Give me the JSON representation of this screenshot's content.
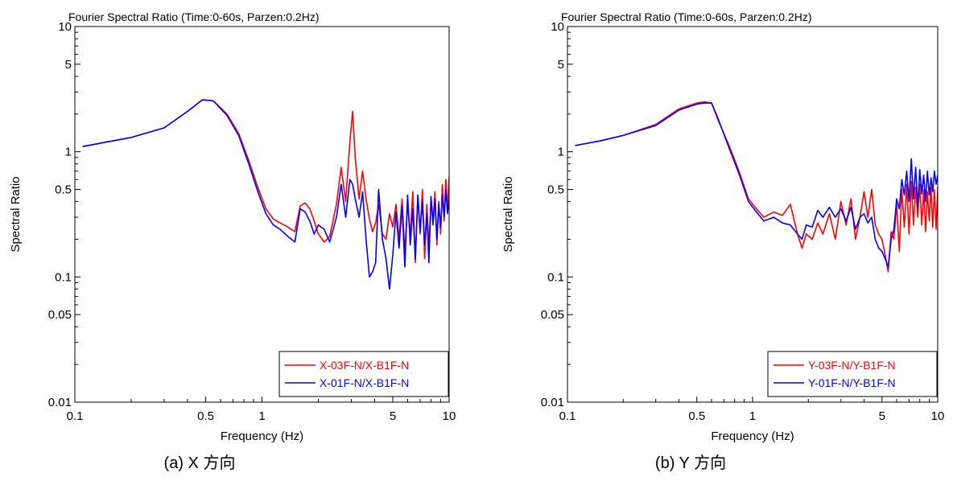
{
  "chart_data": [
    {
      "type": "line",
      "panel": "a",
      "title": "Fourier Spectral Ratio (Time:0-60s, Parzen:0.2Hz)",
      "xlabel": "Frequency (Hz)",
      "ylabel": "Spectral Ratio",
      "xscale": "log",
      "yscale": "log",
      "xlim": [
        0.1,
        10
      ],
      "ylim": [
        0.01,
        10
      ],
      "xticks": [
        0.1,
        0.5,
        1,
        5,
        10
      ],
      "xtick_labels": [
        "0.1",
        "0.5",
        "1",
        "5",
        "10"
      ],
      "yticks": [
        0.01,
        0.05,
        0.1,
        0.5,
        1,
        5,
        10
      ],
      "ytick_labels": [
        "0.01",
        "0.05",
        "0.1",
        "0.5",
        "1",
        "5",
        "10"
      ],
      "grid": false,
      "legend_position": "bottom-right",
      "caption": "(a)  X 方向",
      "series": [
        {
          "name": "X-03F-N/X-B1F-N",
          "color": "#ff0000",
          "x": [
            0.11,
            0.15,
            0.2,
            0.3,
            0.4,
            0.48,
            0.55,
            0.65,
            0.75,
            0.85,
            0.95,
            1.05,
            1.15,
            1.25,
            1.38,
            1.5,
            1.6,
            1.7,
            1.8,
            1.9,
            2.0,
            2.15,
            2.3,
            2.5,
            2.65,
            2.8,
            2.95,
            3.05,
            3.15,
            3.3,
            3.45,
            3.6,
            3.75,
            3.9,
            4.05,
            4.2,
            4.4,
            4.6,
            4.8,
            5.0,
            5.2,
            5.4,
            5.6,
            5.8,
            6.0,
            6.2,
            6.4,
            6.6,
            6.8,
            7.0,
            7.2,
            7.4,
            7.6,
            7.8,
            8.0,
            8.2,
            8.4,
            8.6,
            8.8,
            9.0,
            9.2,
            9.4,
            9.6,
            9.8,
            10.0
          ],
          "y": [
            1.1,
            1.2,
            1.3,
            1.55,
            2.1,
            2.6,
            2.55,
            2.0,
            1.4,
            0.85,
            0.52,
            0.35,
            0.29,
            0.27,
            0.25,
            0.23,
            0.37,
            0.39,
            0.35,
            0.28,
            0.22,
            0.19,
            0.21,
            0.38,
            0.75,
            0.4,
            1.2,
            2.1,
            0.9,
            0.42,
            0.7,
            0.42,
            0.29,
            0.23,
            0.27,
            0.38,
            0.22,
            0.2,
            0.32,
            0.25,
            0.38,
            0.2,
            0.42,
            0.16,
            0.38,
            0.22,
            0.48,
            0.13,
            0.45,
            0.22,
            0.5,
            0.14,
            0.38,
            0.17,
            0.42,
            0.28,
            0.48,
            0.18,
            0.4,
            0.22,
            0.55,
            0.28,
            0.6,
            0.34,
            0.63
          ]
        },
        {
          "name": "X-01F-N/X-B1F-N",
          "color": "#0000ff",
          "x": [
            0.11,
            0.15,
            0.2,
            0.3,
            0.4,
            0.48,
            0.55,
            0.65,
            0.75,
            0.85,
            0.95,
            1.05,
            1.15,
            1.25,
            1.38,
            1.5,
            1.6,
            1.7,
            1.8,
            1.9,
            2.0,
            2.15,
            2.3,
            2.5,
            2.65,
            2.8,
            2.95,
            3.05,
            3.15,
            3.3,
            3.45,
            3.6,
            3.75,
            3.9,
            4.05,
            4.2,
            4.4,
            4.6,
            4.8,
            5.0,
            5.2,
            5.4,
            5.6,
            5.8,
            6.0,
            6.2,
            6.4,
            6.6,
            6.8,
            7.0,
            7.2,
            7.4,
            7.6,
            7.8,
            8.0,
            8.2,
            8.4,
            8.6,
            8.8,
            9.0,
            9.2,
            9.4,
            9.6,
            9.8,
            10.0
          ],
          "y": [
            1.1,
            1.2,
            1.3,
            1.55,
            2.1,
            2.6,
            2.55,
            1.95,
            1.35,
            0.8,
            0.48,
            0.32,
            0.26,
            0.24,
            0.21,
            0.19,
            0.35,
            0.33,
            0.28,
            0.22,
            0.26,
            0.24,
            0.19,
            0.3,
            0.55,
            0.3,
            0.6,
            0.55,
            0.42,
            0.3,
            0.48,
            0.2,
            0.1,
            0.11,
            0.13,
            0.5,
            0.2,
            0.14,
            0.08,
            0.15,
            0.33,
            0.17,
            0.37,
            0.12,
            0.45,
            0.18,
            0.35,
            0.14,
            0.45,
            0.23,
            0.4,
            0.18,
            0.32,
            0.13,
            0.44,
            0.26,
            0.42,
            0.2,
            0.38,
            0.25,
            0.45,
            0.3,
            0.5,
            0.32,
            0.42
          ]
        }
      ]
    },
    {
      "type": "line",
      "panel": "b",
      "title": "Fourier Spectral Ratio (Time:0-60s, Parzen:0.2Hz)",
      "xlabel": "Frequency (Hz)",
      "ylabel": "Spectral Ratio",
      "xscale": "log",
      "yscale": "log",
      "xlim": [
        0.1,
        10
      ],
      "ylim": [
        0.01,
        10
      ],
      "xticks": [
        0.1,
        0.5,
        1,
        5,
        10
      ],
      "xtick_labels": [
        "0.1",
        "0.5",
        "1",
        "5",
        "10"
      ],
      "yticks": [
        0.01,
        0.05,
        0.1,
        0.5,
        1,
        5,
        10
      ],
      "ytick_labels": [
        "0.01",
        "0.05",
        "0.1",
        "0.5",
        "1",
        "5",
        "10"
      ],
      "grid": false,
      "legend_position": "bottom-right",
      "caption": "(b)  Y 方向",
      "series": [
        {
          "name": "Y-03F-N/Y-B1F-N",
          "color": "#ff0000",
          "x": [
            0.11,
            0.15,
            0.2,
            0.3,
            0.4,
            0.5,
            0.55,
            0.6,
            0.65,
            0.75,
            0.85,
            0.95,
            1.05,
            1.15,
            1.3,
            1.45,
            1.6,
            1.75,
            1.85,
            1.95,
            2.1,
            2.25,
            2.4,
            2.6,
            2.8,
            3.0,
            3.2,
            3.4,
            3.6,
            3.8,
            4.0,
            4.2,
            4.4,
            4.6,
            4.8,
            5.0,
            5.2,
            5.4,
            5.6,
            5.8,
            6.0,
            6.2,
            6.4,
            6.6,
            6.8,
            7.0,
            7.2,
            7.4,
            7.6,
            7.8,
            8.0,
            8.2,
            8.4,
            8.6,
            8.8,
            9.0,
            9.2,
            9.4,
            9.6,
            9.8,
            10.0
          ],
          "y": [
            1.12,
            1.22,
            1.35,
            1.65,
            2.2,
            2.45,
            2.5,
            2.45,
            1.8,
            1.1,
            0.68,
            0.42,
            0.35,
            0.3,
            0.33,
            0.31,
            0.38,
            0.22,
            0.17,
            0.22,
            0.2,
            0.27,
            0.22,
            0.32,
            0.2,
            0.4,
            0.26,
            0.42,
            0.2,
            0.3,
            0.48,
            0.3,
            0.5,
            0.26,
            0.22,
            0.2,
            0.15,
            0.11,
            0.23,
            0.2,
            0.38,
            0.16,
            0.5,
            0.25,
            0.55,
            0.22,
            0.58,
            0.26,
            0.52,
            0.3,
            0.55,
            0.26,
            0.5,
            0.23,
            0.48,
            0.28,
            0.52,
            0.25,
            0.5,
            0.24,
            0.52
          ]
        },
        {
          "name": "Y-01F-N/Y-B1F-N",
          "color": "#0000ff",
          "x": [
            0.11,
            0.15,
            0.2,
            0.3,
            0.4,
            0.5,
            0.55,
            0.6,
            0.65,
            0.75,
            0.85,
            0.95,
            1.05,
            1.15,
            1.3,
            1.45,
            1.6,
            1.75,
            1.85,
            1.95,
            2.1,
            2.25,
            2.4,
            2.6,
            2.8,
            3.0,
            3.2,
            3.4,
            3.6,
            3.8,
            4.0,
            4.2,
            4.4,
            4.6,
            4.8,
            5.0,
            5.2,
            5.4,
            5.6,
            5.8,
            6.0,
            6.2,
            6.4,
            6.6,
            6.8,
            7.0,
            7.2,
            7.4,
            7.6,
            7.8,
            8.0,
            8.2,
            8.4,
            8.6,
            8.8,
            9.0,
            9.2,
            9.4,
            9.6,
            9.8,
            10.0
          ],
          "y": [
            1.12,
            1.22,
            1.35,
            1.62,
            2.15,
            2.4,
            2.45,
            2.45,
            1.85,
            1.05,
            0.65,
            0.4,
            0.33,
            0.28,
            0.3,
            0.27,
            0.26,
            0.22,
            0.2,
            0.26,
            0.25,
            0.34,
            0.3,
            0.36,
            0.3,
            0.35,
            0.28,
            0.36,
            0.24,
            0.3,
            0.32,
            0.27,
            0.3,
            0.2,
            0.17,
            0.16,
            0.14,
            0.12,
            0.2,
            0.24,
            0.42,
            0.35,
            0.6,
            0.45,
            0.7,
            0.4,
            0.88,
            0.42,
            0.75,
            0.36,
            0.72,
            0.46,
            0.65,
            0.4,
            0.7,
            0.45,
            0.62,
            0.48,
            0.7,
            0.55,
            0.65
          ]
        }
      ]
    }
  ]
}
